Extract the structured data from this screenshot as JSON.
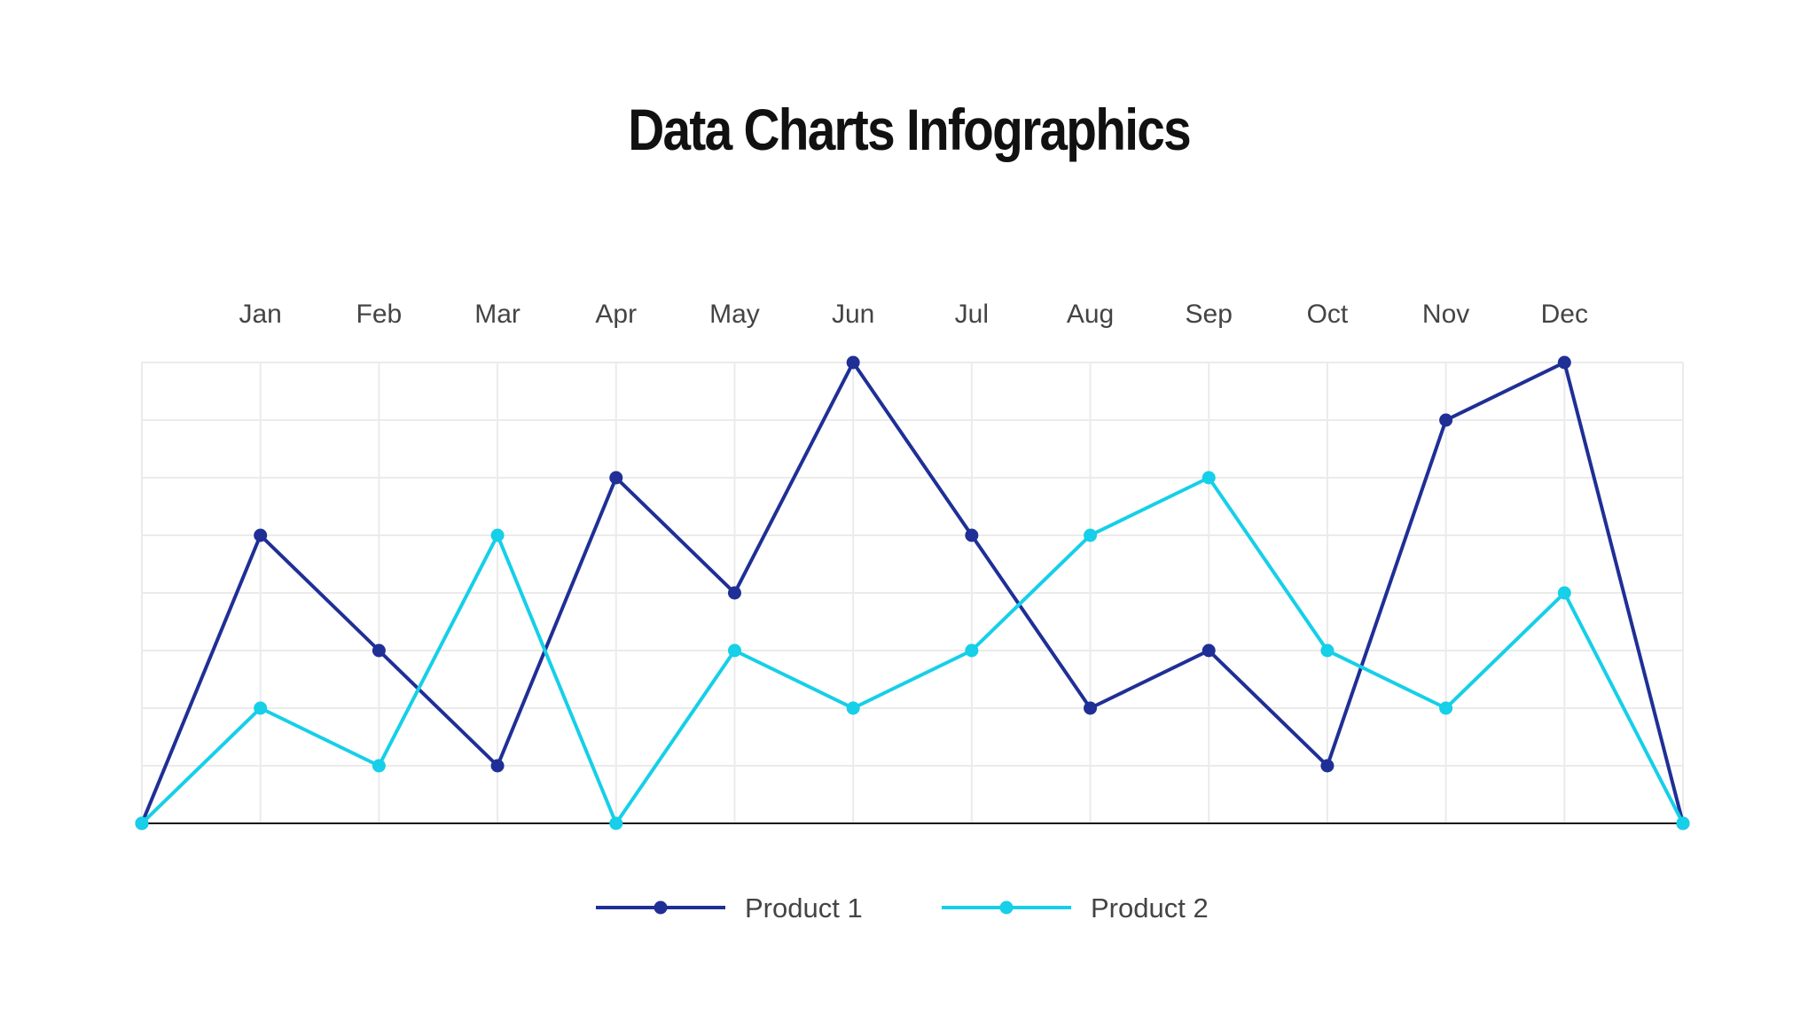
{
  "title": "Data Charts Infographics",
  "chart_data": {
    "type": "line",
    "title": "Data Charts Infographics",
    "categories": [
      "",
      "Jan",
      "Feb",
      "Mar",
      "Apr",
      "May",
      "Jun",
      "Jul",
      "Aug",
      "Sep",
      "Oct",
      "Nov",
      "Dec",
      ""
    ],
    "series": [
      {
        "name": "Product 1",
        "color": "#1f2f96",
        "values": [
          0,
          5,
          3,
          1,
          6,
          4,
          8,
          5,
          2,
          3,
          1,
          7,
          8,
          0
        ]
      },
      {
        "name": "Product 2",
        "color": "#16cfe8",
        "values": [
          0,
          2,
          1,
          5,
          0,
          3,
          2,
          3,
          5,
          6,
          3,
          2,
          4,
          0
        ]
      }
    ],
    "ylim": [
      0,
      8
    ],
    "x_axis_position": "top",
    "y_tick_labels_shown": false,
    "grid": true,
    "legend_position": "bottom-center",
    "grid_color": "#ebebeb",
    "baseline_color": "#111111"
  }
}
